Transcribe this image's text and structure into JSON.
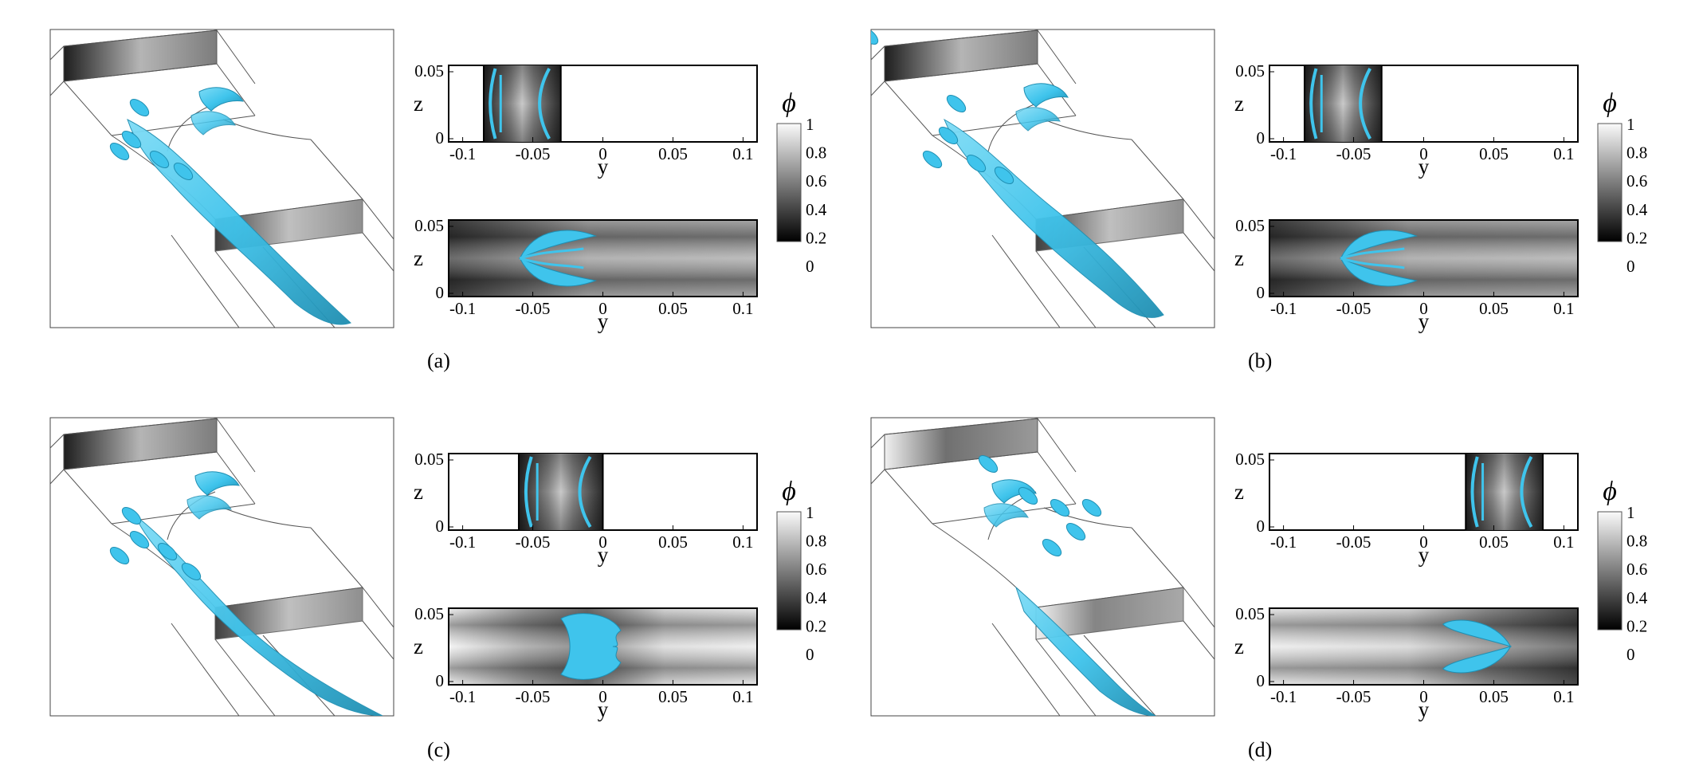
{
  "panels": [
    {
      "caption": "(a)",
      "top_slice": [
        -0.085,
        -0.03
      ],
      "bottom_kind": "a"
    },
    {
      "caption": "(b)",
      "top_slice": [
        -0.085,
        -0.03
      ],
      "bottom_kind": "b"
    },
    {
      "caption": "(c)",
      "top_slice": [
        -0.06,
        0.0
      ],
      "bottom_kind": "c"
    },
    {
      "caption": "(d)",
      "top_slice": [
        0.03,
        0.085
      ],
      "bottom_kind": "d"
    }
  ],
  "axes": {
    "xlabel": "y",
    "zlabel": "z",
    "y_ticks": [
      "-0.1",
      "-0.05",
      "0",
      "0.05",
      "0.1"
    ],
    "y_tick_values": [
      -0.1,
      -0.05,
      0,
      0.05,
      0.1
    ],
    "y_range": [
      -0.11,
      0.11
    ],
    "z_ticks": [
      "0.05",
      "0"
    ]
  },
  "colorbar": {
    "label": "ϕ",
    "ticks": [
      "1",
      "0.8",
      "0.6",
      "0.4",
      "0.2",
      "0"
    ],
    "range": [
      0,
      1
    ],
    "colormap": "grayscale"
  },
  "colors": {
    "isosurface": "#3fc4ec",
    "isosurface_dark": "#1f8fb3",
    "frame": "#000000",
    "wire": "#555555"
  }
}
